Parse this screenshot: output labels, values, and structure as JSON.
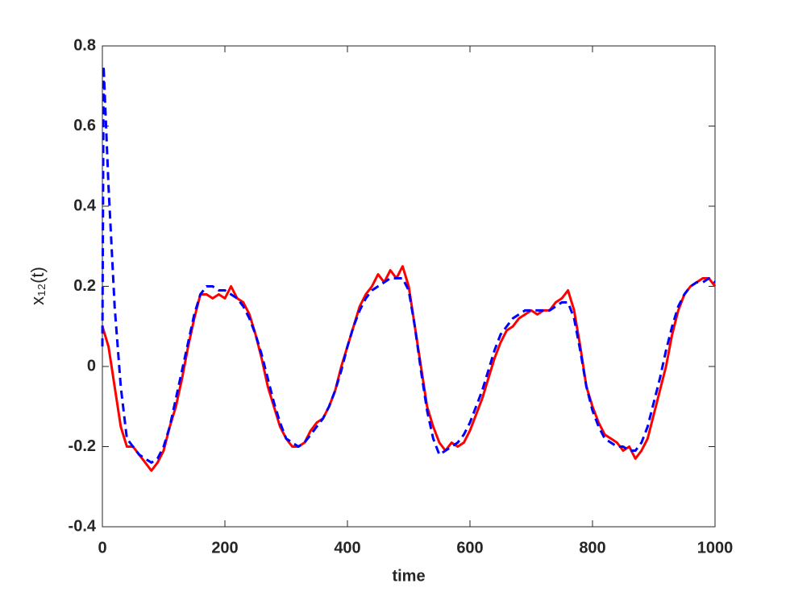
{
  "chart_data": {
    "type": "line",
    "xlabel": "time",
    "ylabel": "x₁₂(t)",
    "x": [
      0,
      2,
      10,
      20,
      30,
      40,
      50,
      60,
      70,
      80,
      90,
      100,
      110,
      120,
      130,
      140,
      150,
      160,
      170,
      180,
      190,
      200,
      210,
      220,
      230,
      240,
      250,
      260,
      270,
      280,
      290,
      300,
      310,
      320,
      330,
      340,
      350,
      360,
      370,
      380,
      390,
      400,
      410,
      420,
      430,
      440,
      450,
      460,
      470,
      480,
      490,
      500,
      510,
      520,
      530,
      540,
      550,
      560,
      570,
      580,
      590,
      600,
      610,
      620,
      630,
      640,
      650,
      660,
      670,
      680,
      690,
      700,
      710,
      720,
      730,
      740,
      750,
      760,
      770,
      780,
      790,
      800,
      810,
      820,
      830,
      840,
      850,
      860,
      870,
      880,
      890,
      900,
      910,
      920,
      930,
      940,
      950,
      960,
      970,
      980,
      990,
      1000
    ],
    "series": [
      {
        "color": "#ff0000",
        "dash": false,
        "values": [
          0.1,
          0.09,
          0.05,
          -0.05,
          -0.15,
          -0.2,
          -0.2,
          -0.22,
          -0.24,
          -0.26,
          -0.24,
          -0.21,
          -0.15,
          -0.1,
          -0.03,
          0.05,
          0.12,
          0.18,
          0.18,
          0.17,
          0.18,
          0.17,
          0.2,
          0.17,
          0.16,
          0.13,
          0.08,
          0.02,
          -0.05,
          -0.1,
          -0.15,
          -0.18,
          -0.2,
          -0.2,
          -0.19,
          -0.16,
          -0.14,
          -0.13,
          -0.1,
          -0.06,
          0.0,
          0.05,
          0.1,
          0.15,
          0.18,
          0.2,
          0.23,
          0.21,
          0.24,
          0.22,
          0.25,
          0.2,
          0.1,
          0.0,
          -0.1,
          -0.15,
          -0.19,
          -0.21,
          -0.19,
          -0.2,
          -0.19,
          -0.16,
          -0.12,
          -0.08,
          -0.03,
          0.02,
          0.06,
          0.09,
          0.1,
          0.12,
          0.13,
          0.14,
          0.13,
          0.14,
          0.14,
          0.16,
          0.17,
          0.19,
          0.14,
          0.05,
          -0.05,
          -0.1,
          -0.14,
          -0.17,
          -0.18,
          -0.19,
          -0.21,
          -0.2,
          -0.23,
          -0.21,
          -0.18,
          -0.12,
          -0.06,
          0.0,
          0.08,
          0.14,
          0.18,
          0.2,
          0.21,
          0.22,
          0.22,
          0.2
        ]
      },
      {
        "color": "#0000ff",
        "dash": true,
        "values": [
          0.05,
          0.75,
          0.45,
          0.15,
          -0.05,
          -0.18,
          -0.2,
          -0.22,
          -0.23,
          -0.24,
          -0.23,
          -0.2,
          -0.15,
          -0.08,
          -0.01,
          0.06,
          0.13,
          0.18,
          0.2,
          0.2,
          0.19,
          0.19,
          0.18,
          0.17,
          0.15,
          0.12,
          0.08,
          0.03,
          -0.03,
          -0.09,
          -0.14,
          -0.18,
          -0.19,
          -0.2,
          -0.19,
          -0.17,
          -0.15,
          -0.13,
          -0.1,
          -0.06,
          -0.01,
          0.05,
          0.1,
          0.14,
          0.17,
          0.19,
          0.2,
          0.21,
          0.22,
          0.22,
          0.22,
          0.19,
          0.1,
          -0.01,
          -0.11,
          -0.18,
          -0.22,
          -0.21,
          -0.2,
          -0.19,
          -0.17,
          -0.14,
          -0.1,
          -0.06,
          -0.01,
          0.04,
          0.08,
          0.1,
          0.12,
          0.13,
          0.14,
          0.14,
          0.14,
          0.14,
          0.14,
          0.15,
          0.16,
          0.16,
          0.12,
          0.04,
          -0.05,
          -0.11,
          -0.15,
          -0.18,
          -0.19,
          -0.2,
          -0.2,
          -0.21,
          -0.21,
          -0.19,
          -0.15,
          -0.09,
          -0.03,
          0.04,
          0.1,
          0.15,
          0.18,
          0.2,
          0.21,
          0.21,
          0.22,
          0.21
        ]
      }
    ],
    "xlim": [
      0,
      1000
    ],
    "xticks": [
      0,
      200,
      400,
      600,
      800,
      1000
    ],
    "ylim": [
      -0.4,
      0.8
    ],
    "yticks": [
      -0.4,
      -0.2,
      0,
      0.2,
      0.4,
      0.6,
      0.8
    ],
    "grid": false
  }
}
